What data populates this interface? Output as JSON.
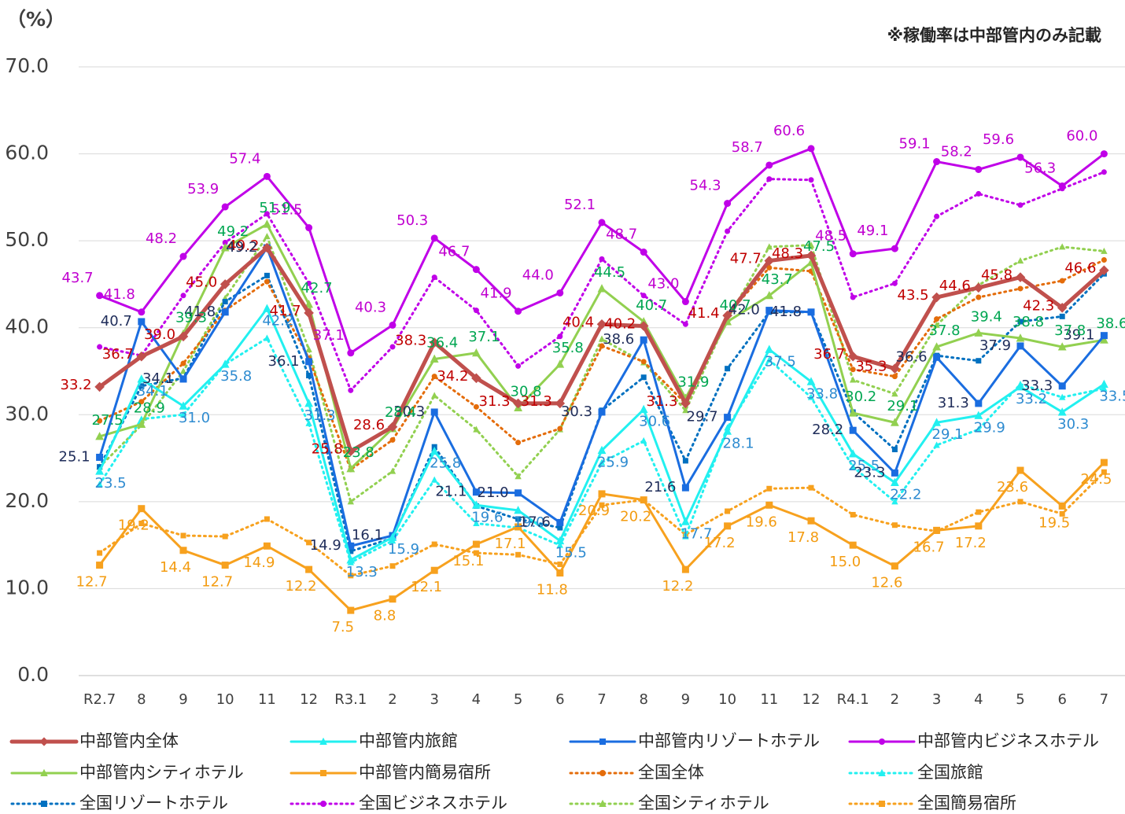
{
  "chart_data": {
    "type": "line",
    "y_unit_label": "（%）",
    "note": "※稼働率は中部管内のみ記載",
    "categories": [
      "R2.7",
      "8",
      "9",
      "10",
      "11",
      "12",
      "R3.1",
      "2",
      "3",
      "4",
      "5",
      "6",
      "7",
      "8",
      "9",
      "10",
      "11",
      "12",
      "R4.1",
      "2",
      "3",
      "4",
      "5",
      "6",
      "7"
    ],
    "ylim": [
      0,
      70
    ],
    "yticks": [
      {
        "value": 0,
        "label": "0.0"
      },
      {
        "value": 10,
        "label": "10.0"
      },
      {
        "value": 20,
        "label": "20.0"
      },
      {
        "value": 30,
        "label": "30.0"
      },
      {
        "value": 40,
        "label": "40.0"
      },
      {
        "value": 50,
        "label": "50.0"
      },
      {
        "value": 60,
        "label": "60.0"
      },
      {
        "value": 70,
        "label": "70.0"
      }
    ],
    "grid": true,
    "legend_position": "bottom",
    "series": [
      {
        "name": "中部管内全体",
        "color": "#c0504d",
        "label_color": "#c00000",
        "style": "solid",
        "marker": "diamond",
        "values": [
          33.2,
          36.7,
          39.0,
          45.0,
          49.2,
          41.7,
          25.8,
          28.6,
          38.3,
          34.2,
          31.3,
          31.3,
          40.4,
          40.2,
          31.3,
          41.4,
          47.7,
          48.3,
          36.7,
          35.3,
          43.5,
          44.6,
          45.8,
          42.3,
          46.6
        ],
        "value_labels": [
          "33.2",
          "36.7",
          "39.0",
          "45.0",
          "49.2",
          "41.7",
          "25.8",
          "28.6",
          "38.3",
          "34.2",
          "31.3",
          "31.3",
          "40.4",
          "40.2",
          "31.3",
          "41.4",
          "47.7",
          "48.3",
          "36.7",
          "35.3",
          "43.5",
          "44.6",
          "45.8",
          "42.3",
          "46.6"
        ]
      },
      {
        "name": "中部管内旅館",
        "color": "#22f0f0",
        "label_color": "#2e8bd0",
        "style": "solid",
        "marker": "triangle",
        "values": [
          23.5,
          34.1,
          31.0,
          35.8,
          42.2,
          31.3,
          13.3,
          15.9,
          25.8,
          19.6,
          19.0,
          15.5,
          25.9,
          30.6,
          17.7,
          28.1,
          37.5,
          33.8,
          25.5,
          22.2,
          29.1,
          29.9,
          33.2,
          30.3,
          33.5
        ],
        "value_labels": [
          "23.5",
          "34.1",
          "31.0",
          "35.8",
          "42.2",
          "31.3",
          "13.3",
          "15.9",
          "25.8",
          "19.6",
          "19.0",
          "15.5",
          "25.9",
          "30.6",
          "17.7",
          "28.1",
          "37.5",
          "33.8",
          "25.5",
          "22.2",
          "29.1",
          "29.9",
          "33.2",
          "30.3",
          "33.5"
        ]
      },
      {
        "name": "中部管内リゾートホテル",
        "color": "#1a6de0",
        "label_color": "#1f2d5a",
        "style": "solid",
        "marker": "square",
        "values": [
          25.1,
          40.7,
          34.1,
          41.8,
          49.2,
          36.1,
          14.9,
          16.1,
          30.3,
          21.1,
          21.0,
          17.6,
          30.3,
          38.6,
          21.6,
          29.7,
          42.0,
          41.8,
          28.2,
          23.3,
          36.6,
          31.3,
          37.9,
          33.3,
          39.1
        ],
        "value_labels": [
          "25.1",
          "40.7",
          "34.1",
          "41.8",
          "49.2",
          "36.1",
          "14.9",
          "16.1",
          "30.3",
          "21.1",
          "21.0",
          "17.6",
          "30.3",
          "38.6",
          "21.6",
          "29.7",
          "42.0",
          "41.8",
          "28.2",
          "23.3",
          "36.6",
          "31.3",
          "37.9",
          "33.3",
          "39.1"
        ]
      },
      {
        "name": "中部管内ビジネスホテル",
        "color": "#c000e8",
        "label_color": "#c000d0",
        "style": "solid",
        "marker": "circle",
        "values": [
          43.7,
          41.8,
          48.2,
          53.9,
          57.4,
          51.5,
          37.1,
          40.3,
          50.3,
          46.7,
          41.9,
          44.0,
          52.1,
          48.7,
          43.0,
          54.3,
          58.7,
          60.6,
          48.5,
          49.1,
          59.1,
          58.2,
          59.6,
          56.3,
          60.0
        ],
        "value_labels": [
          "43.7",
          "41.8",
          "48.2",
          "53.9",
          "57.4",
          "51.5",
          "37.1",
          "40.3",
          "50.3",
          "46.7",
          "41.9",
          "44.0",
          "52.1",
          "48.7",
          "43.0",
          "54.3",
          "58.7",
          "60.6",
          "48.5",
          "49.1",
          "59.1",
          "58.2",
          "59.6",
          "56.3",
          "60.0"
        ]
      },
      {
        "name": "中部管内シティホテル",
        "color": "#92d050",
        "label_color": "#00a651",
        "style": "solid",
        "marker": "triangle",
        "values": [
          27.5,
          28.9,
          39.3,
          49.2,
          51.9,
          42.7,
          23.8,
          28.4,
          36.4,
          37.1,
          30.8,
          35.8,
          44.5,
          40.7,
          31.9,
          40.7,
          43.7,
          47.5,
          30.2,
          29.1,
          37.8,
          39.4,
          38.8,
          37.8,
          38.6
        ],
        "value_labels": [
          "27.5",
          "28.9",
          "39.3",
          "49.2",
          "51.9",
          "42.7",
          "23.8",
          "28.4",
          "36.4",
          "37.1",
          "30.8",
          "35.8",
          "44.5",
          "40.7",
          "31.9",
          "40.7",
          "43.7",
          "47.5",
          "30.2",
          "29.1",
          "37.8",
          "39.4",
          "38.8",
          "37.8",
          "38.6"
        ]
      },
      {
        "name": "中部管内簡易宿所",
        "color": "#f7a11e",
        "label_color": "#f39c12",
        "style": "solid",
        "marker": "square",
        "values": [
          12.7,
          19.2,
          14.4,
          12.7,
          14.9,
          12.2,
          7.5,
          8.8,
          12.1,
          15.1,
          17.1,
          11.8,
          20.9,
          20.2,
          12.2,
          17.2,
          19.6,
          17.8,
          15.0,
          12.6,
          16.7,
          17.2,
          23.6,
          19.5,
          24.5
        ],
        "value_labels": [
          "12.7",
          "19.2",
          "14.4",
          "12.7",
          "14.9",
          "12.2",
          "7.5",
          "8.8",
          "12.1",
          "15.1",
          "17.1",
          "11.8",
          "20.9",
          "20.2",
          "12.2",
          "17.2",
          "19.6",
          "17.8",
          "15.0",
          "12.6",
          "16.7",
          "17.2",
          "23.6",
          "19.5",
          "24.5"
        ]
      },
      {
        "name": "全国全体",
        "color": "#e46c0a",
        "style": "dotted",
        "marker": "circle",
        "values": [
          29.3,
          31.5,
          35.9,
          42.0,
          45.3,
          36.5,
          23.7,
          27.1,
          34.4,
          30.9,
          26.8,
          28.4,
          37.9,
          36.1,
          31.3,
          41.5,
          46.9,
          46.5,
          35.2,
          34.4,
          41.0,
          43.5,
          44.5,
          45.4,
          47.8
        ]
      },
      {
        "name": "全国旅館",
        "color": "#22f0f0",
        "style": "dotted",
        "marker": "triangle",
        "values": [
          22.0,
          29.5,
          30.0,
          35.8,
          38.8,
          29.0,
          13.0,
          15.5,
          22.5,
          17.5,
          17.0,
          15.0,
          24.5,
          27.0,
          16.0,
          28.5,
          36.3,
          32.0,
          24.0,
          20.0,
          26.5,
          28.3,
          33.5,
          32.0,
          33.0
        ]
      },
      {
        "name": "全国リゾートホテル",
        "color": "#0070c0",
        "style": "dotted",
        "marker": "square",
        "values": [
          24.0,
          33.3,
          34.2,
          43.0,
          46.0,
          34.5,
          14.3,
          15.8,
          26.3,
          19.5,
          18.0,
          17.0,
          30.5,
          34.3,
          24.7,
          35.3,
          41.8,
          41.8,
          30.3,
          26.0,
          36.8,
          36.2,
          40.7,
          41.3,
          46.2
        ]
      },
      {
        "name": "全国ビジネスホテル",
        "color": "#c000e8",
        "style": "dotted",
        "marker": "circle",
        "values": [
          37.8,
          36.8,
          43.7,
          49.8,
          53.1,
          45.1,
          32.8,
          37.8,
          45.8,
          42.0,
          35.6,
          39.0,
          47.9,
          43.7,
          40.4,
          51.1,
          57.1,
          57.0,
          43.5,
          45.1,
          52.8,
          55.4,
          54.1,
          56.0,
          57.9
        ]
      },
      {
        "name": "全国シティホテル",
        "color": "#92d050",
        "style": "dotted",
        "marker": "triangle",
        "values": [
          24.0,
          28.8,
          35.0,
          43.4,
          50.5,
          37.5,
          20.0,
          23.5,
          32.2,
          28.3,
          22.9,
          28.3,
          38.7,
          36.0,
          30.5,
          41.0,
          49.3,
          49.5,
          34.0,
          32.4,
          40.3,
          44.9,
          47.7,
          49.3,
          48.8
        ]
      },
      {
        "name": "全国簡易宿所",
        "color": "#f7a11e",
        "style": "dotted",
        "marker": "square",
        "values": [
          14.1,
          17.5,
          16.1,
          16.0,
          18.0,
          15.3,
          11.5,
          12.6,
          15.1,
          14.1,
          13.9,
          12.8,
          19.6,
          20.2,
          16.2,
          18.9,
          21.5,
          21.6,
          18.5,
          17.3,
          16.6,
          18.8,
          20.0,
          18.6,
          23.4
        ]
      }
    ]
  }
}
